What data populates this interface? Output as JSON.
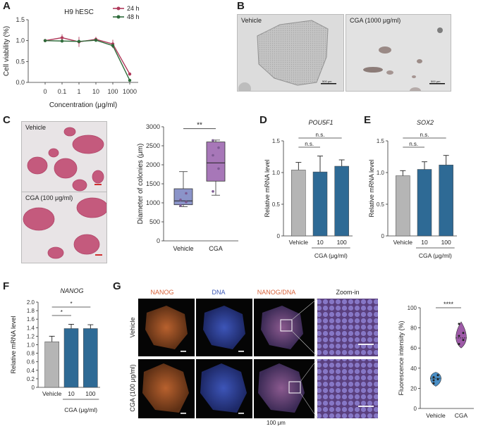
{
  "panel_labels": {
    "a": "A",
    "b": "B",
    "c": "C",
    "d": "D",
    "e": "E",
    "f": "F",
    "g": "G"
  },
  "chart_data": [
    {
      "panel": "A",
      "type": "line",
      "title": "H9 hESC",
      "xlabel": "Concentration (μg/ml)",
      "ylabel": "Cell viability (%)",
      "categories": [
        "0",
        "0.1",
        "1",
        "10",
        "100",
        "1000"
      ],
      "ylim": [
        0,
        1.5
      ],
      "yticks": [
        "0.0",
        "0.5",
        "1.0",
        "1.5"
      ],
      "legend_position": "top-right",
      "series": [
        {
          "name": "24 h",
          "color": "#b03a5b",
          "values": [
            1.0,
            1.07,
            0.97,
            1.03,
            0.92,
            0.2
          ],
          "errors": [
            0.04,
            0.08,
            0.12,
            0.06,
            0.1,
            0.03
          ]
        },
        {
          "name": "48 h",
          "color": "#2e6b3a",
          "values": [
            1.0,
            0.99,
            0.98,
            1.01,
            0.88,
            0.05
          ],
          "errors": [
            0.03,
            0.03,
            0.04,
            0.04,
            0.05,
            0.02
          ]
        }
      ]
    },
    {
      "panel": "C",
      "type": "box",
      "xlabel": "",
      "ylabel": "Diameter of colonies (μm)",
      "categories": [
        "Vehicle",
        "CGA"
      ],
      "ylim": [
        0,
        3000
      ],
      "yticks": [
        "0",
        "500",
        "1000",
        "1500",
        "2000",
        "2500",
        "3000"
      ],
      "boxes": [
        {
          "name": "Vehicle",
          "min": 900,
          "q1": 950,
          "median": 1050,
          "q3": 1370,
          "max": 1820,
          "points": [
            930,
            1020,
            1080,
            1250
          ],
          "color": "#8b94c9"
        },
        {
          "name": "CGA",
          "min": 1200,
          "q1": 1570,
          "median": 2050,
          "q3": 2600,
          "max": 2650,
          "points": [
            1300,
            1900,
            2250,
            2450,
            2640
          ],
          "color": "#a777b8"
        }
      ],
      "significance": "**"
    },
    {
      "panel": "D",
      "type": "bar",
      "title": "POU5F1",
      "ylabel": "Relative mRNA level",
      "categories": [
        "Vehicle",
        "10",
        "100"
      ],
      "group_label": "CGA (μg/ml)",
      "values": [
        1.04,
        1.01,
        1.1
      ],
      "errors": [
        0.12,
        0.25,
        0.1
      ],
      "colors": [
        "#b5b5b5",
        "#2e6a95",
        "#2e6a95"
      ],
      "ylim": [
        0,
        1.5
      ],
      "yticks": [
        "0",
        "0.5",
        "1.0",
        "1.5"
      ],
      "significance": [
        "n.s.",
        "n.s."
      ]
    },
    {
      "panel": "E",
      "type": "bar",
      "title": "SOX2",
      "ylabel": "Relative mRNA level",
      "categories": [
        "Vehicle",
        "10",
        "100"
      ],
      "group_label": "CGA (μg/ml)",
      "values": [
        0.95,
        1.05,
        1.12
      ],
      "errors": [
        0.08,
        0.12,
        0.15
      ],
      "colors": [
        "#b5b5b5",
        "#2e6a95",
        "#2e6a95"
      ],
      "ylim": [
        0,
        1.5
      ],
      "yticks": [
        "0",
        "0.5",
        "1.0",
        "1.5"
      ],
      "significance": [
        "n.s.",
        "n.s."
      ]
    },
    {
      "panel": "F",
      "type": "bar",
      "title": "NANOG",
      "ylabel": "Relative mRNA level",
      "categories": [
        "Vehicle",
        "10",
        "100"
      ],
      "group_label": "CGA (μg/ml)",
      "values": [
        1.07,
        1.38,
        1.38
      ],
      "errors": [
        0.13,
        0.1,
        0.09
      ],
      "colors": [
        "#b5b5b5",
        "#2e6a95",
        "#2e6a95"
      ],
      "ylim": [
        0,
        2.0
      ],
      "yticks": [
        "0",
        "0.2",
        "0.4",
        "0.6",
        "0.8",
        "1.0",
        "1.2",
        "1.4",
        "1.6",
        "1.8",
        "2.0"
      ],
      "significance": [
        "*",
        "*"
      ]
    },
    {
      "panel": "G",
      "type": "violin",
      "ylabel": "Fluorescence intensity (%)",
      "categories": [
        "Vehicle",
        "CGA"
      ],
      "ylim": [
        0,
        100
      ],
      "yticks": [
        "0",
        "20",
        "40",
        "60",
        "80",
        "100"
      ],
      "violins": [
        {
          "name": "Vehicle",
          "min": 22,
          "median": 30,
          "max": 36,
          "color": "#4a8fc6",
          "points": [
            25,
            29,
            31,
            33,
            28
          ]
        },
        {
          "name": "CGA",
          "min": 60,
          "median": 70,
          "max": 86,
          "color": "#9e5aa8",
          "points": [
            64,
            68,
            72,
            75,
            84
          ]
        }
      ],
      "significance": "****"
    }
  ],
  "microscopy_b": {
    "vehicle": "Vehicle",
    "cga": "CGA (1000 μg/ml)",
    "scale": "500 μm"
  },
  "microscopy_c": {
    "vehicle": "Vehicle",
    "cga": "CGA (100 μg/ml)"
  },
  "microscopy_g": {
    "col_headers": [
      {
        "text": "NANOG",
        "color": "#d8623a"
      },
      {
        "text": "DNA",
        "color": "#3a56b5"
      },
      {
        "text": "NANOG/DNA",
        "color": "#d8623a"
      },
      {
        "text": "Zoom-in",
        "color": "#222222"
      }
    ],
    "merge_slash": "/",
    "merge_dna": "DNA",
    "row_labels": [
      "Vehicle",
      "CGA (100 μg/ml)"
    ],
    "scale_caption": "100 μm"
  }
}
